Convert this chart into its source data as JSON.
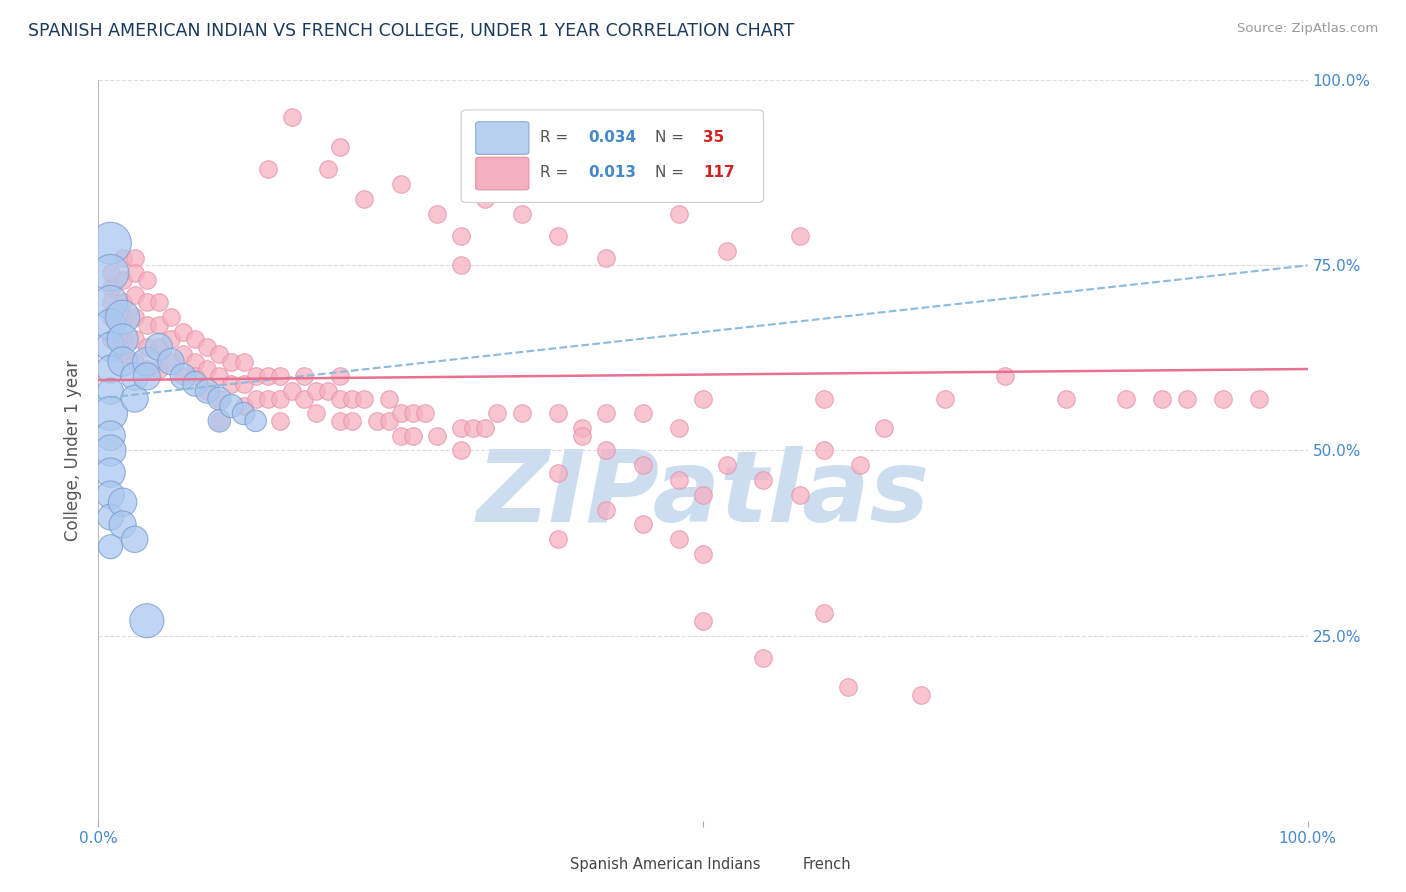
{
  "title": "SPANISH AMERICAN INDIAN VS FRENCH COLLEGE, UNDER 1 YEAR CORRELATION CHART",
  "source_text": "Source: ZipAtlas.com",
  "ylabel": "College, Under 1 year",
  "title_color": "#1a3a5c",
  "source_color": "#999999",
  "watermark": "ZIPatlas",
  "watermark_color": "#ccddf0",
  "xlim": [
    0.0,
    1.0
  ],
  "ylim": [
    0.0,
    1.0
  ],
  "blue_scatter": [
    [
      0.01,
      0.78
    ],
    [
      0.01,
      0.74
    ],
    [
      0.01,
      0.7
    ],
    [
      0.01,
      0.67
    ],
    [
      0.01,
      0.64
    ],
    [
      0.01,
      0.61
    ],
    [
      0.01,
      0.58
    ],
    [
      0.01,
      0.55
    ],
    [
      0.01,
      0.52
    ],
    [
      0.01,
      0.5
    ],
    [
      0.01,
      0.47
    ],
    [
      0.01,
      0.44
    ],
    [
      0.01,
      0.41
    ],
    [
      0.01,
      0.37
    ],
    [
      0.02,
      0.68
    ],
    [
      0.02,
      0.65
    ],
    [
      0.02,
      0.62
    ],
    [
      0.03,
      0.6
    ],
    [
      0.03,
      0.57
    ],
    [
      0.04,
      0.62
    ],
    [
      0.04,
      0.6
    ],
    [
      0.05,
      0.64
    ],
    [
      0.06,
      0.62
    ],
    [
      0.07,
      0.6
    ],
    [
      0.08,
      0.59
    ],
    [
      0.09,
      0.58
    ],
    [
      0.1,
      0.57
    ],
    [
      0.1,
      0.54
    ],
    [
      0.11,
      0.56
    ],
    [
      0.12,
      0.55
    ],
    [
      0.13,
      0.54
    ],
    [
      0.02,
      0.43
    ],
    [
      0.02,
      0.4
    ],
    [
      0.03,
      0.38
    ],
    [
      0.04,
      0.27
    ]
  ],
  "blue_sizes": [
    900,
    700,
    600,
    500,
    450,
    400,
    350,
    600,
    450,
    500,
    450,
    400,
    350,
    300,
    600,
    500,
    450,
    400,
    380,
    420,
    380,
    380,
    360,
    340,
    320,
    300,
    280,
    260,
    280,
    260,
    240,
    420,
    380,
    360,
    600
  ],
  "pink_scatter": [
    [
      0.01,
      0.74
    ],
    [
      0.01,
      0.72
    ],
    [
      0.01,
      0.7
    ],
    [
      0.01,
      0.68
    ],
    [
      0.01,
      0.65
    ],
    [
      0.02,
      0.76
    ],
    [
      0.02,
      0.73
    ],
    [
      0.02,
      0.7
    ],
    [
      0.02,
      0.68
    ],
    [
      0.02,
      0.65
    ],
    [
      0.02,
      0.63
    ],
    [
      0.03,
      0.76
    ],
    [
      0.03,
      0.74
    ],
    [
      0.03,
      0.71
    ],
    [
      0.03,
      0.68
    ],
    [
      0.03,
      0.65
    ],
    [
      0.03,
      0.62
    ],
    [
      0.04,
      0.73
    ],
    [
      0.04,
      0.7
    ],
    [
      0.04,
      0.67
    ],
    [
      0.04,
      0.64
    ],
    [
      0.04,
      0.61
    ],
    [
      0.05,
      0.7
    ],
    [
      0.05,
      0.67
    ],
    [
      0.05,
      0.64
    ],
    [
      0.05,
      0.61
    ],
    [
      0.06,
      0.68
    ],
    [
      0.06,
      0.65
    ],
    [
      0.06,
      0.62
    ],
    [
      0.07,
      0.66
    ],
    [
      0.07,
      0.63
    ],
    [
      0.07,
      0.6
    ],
    [
      0.08,
      0.65
    ],
    [
      0.08,
      0.62
    ],
    [
      0.08,
      0.6
    ],
    [
      0.09,
      0.64
    ],
    [
      0.09,
      0.61
    ],
    [
      0.09,
      0.58
    ],
    [
      0.1,
      0.63
    ],
    [
      0.1,
      0.6
    ],
    [
      0.1,
      0.57
    ],
    [
      0.1,
      0.54
    ],
    [
      0.11,
      0.62
    ],
    [
      0.11,
      0.59
    ],
    [
      0.12,
      0.62
    ],
    [
      0.12,
      0.59
    ],
    [
      0.12,
      0.56
    ],
    [
      0.13,
      0.6
    ],
    [
      0.13,
      0.57
    ],
    [
      0.14,
      0.6
    ],
    [
      0.14,
      0.57
    ],
    [
      0.15,
      0.6
    ],
    [
      0.15,
      0.57
    ],
    [
      0.15,
      0.54
    ],
    [
      0.16,
      0.58
    ],
    [
      0.17,
      0.6
    ],
    [
      0.17,
      0.57
    ],
    [
      0.18,
      0.58
    ],
    [
      0.18,
      0.55
    ],
    [
      0.19,
      0.58
    ],
    [
      0.2,
      0.6
    ],
    [
      0.2,
      0.57
    ],
    [
      0.2,
      0.54
    ],
    [
      0.21,
      0.57
    ],
    [
      0.21,
      0.54
    ],
    [
      0.22,
      0.57
    ],
    [
      0.23,
      0.54
    ],
    [
      0.24,
      0.57
    ],
    [
      0.24,
      0.54
    ],
    [
      0.25,
      0.55
    ],
    [
      0.25,
      0.52
    ],
    [
      0.26,
      0.55
    ],
    [
      0.26,
      0.52
    ],
    [
      0.27,
      0.55
    ],
    [
      0.28,
      0.52
    ],
    [
      0.3,
      0.53
    ],
    [
      0.3,
      0.5
    ],
    [
      0.31,
      0.53
    ],
    [
      0.32,
      0.53
    ],
    [
      0.33,
      0.55
    ],
    [
      0.35,
      0.55
    ],
    [
      0.38,
      0.55
    ],
    [
      0.4,
      0.53
    ],
    [
      0.42,
      0.55
    ],
    [
      0.45,
      0.55
    ],
    [
      0.48,
      0.53
    ],
    [
      0.5,
      0.57
    ],
    [
      0.14,
      0.88
    ],
    [
      0.16,
      0.95
    ],
    [
      0.19,
      0.88
    ],
    [
      0.22,
      0.84
    ],
    [
      0.2,
      0.91
    ],
    [
      0.25,
      0.86
    ],
    [
      0.28,
      0.82
    ],
    [
      0.3,
      0.79
    ],
    [
      0.32,
      0.84
    ],
    [
      0.35,
      0.82
    ],
    [
      0.3,
      0.75
    ],
    [
      0.38,
      0.79
    ],
    [
      0.42,
      0.76
    ],
    [
      0.48,
      0.82
    ],
    [
      0.52,
      0.77
    ],
    [
      0.58,
      0.79
    ],
    [
      0.6,
      0.57
    ],
    [
      0.65,
      0.53
    ],
    [
      0.7,
      0.57
    ],
    [
      0.75,
      0.6
    ],
    [
      0.8,
      0.57
    ],
    [
      0.85,
      0.57
    ],
    [
      0.88,
      0.57
    ],
    [
      0.9,
      0.57
    ],
    [
      0.93,
      0.57
    ],
    [
      0.96,
      0.57
    ],
    [
      0.38,
      0.47
    ],
    [
      0.4,
      0.52
    ],
    [
      0.42,
      0.5
    ],
    [
      0.45,
      0.48
    ],
    [
      0.48,
      0.46
    ],
    [
      0.5,
      0.44
    ],
    [
      0.52,
      0.48
    ],
    [
      0.55,
      0.46
    ],
    [
      0.58,
      0.44
    ],
    [
      0.6,
      0.5
    ],
    [
      0.63,
      0.48
    ],
    [
      0.38,
      0.38
    ],
    [
      0.42,
      0.42
    ],
    [
      0.45,
      0.4
    ],
    [
      0.48,
      0.38
    ],
    [
      0.5,
      0.36
    ],
    [
      0.5,
      0.27
    ],
    [
      0.55,
      0.22
    ],
    [
      0.6,
      0.28
    ],
    [
      0.62,
      0.18
    ],
    [
      0.68,
      0.17
    ]
  ],
  "blue_line_x": [
    0.0,
    1.0
  ],
  "blue_line_y": [
    0.57,
    0.75
  ],
  "pink_line_x": [
    0.0,
    1.0
  ],
  "pink_line_y": [
    0.595,
    0.61
  ],
  "blue_line_color": "#88bbdd",
  "pink_line_color": "#e87090",
  "grid_color": "#cccccc",
  "grid_color2": "#dddddd",
  "background_color": "#ffffff",
  "legend_blue_face": "#b8d0f0",
  "legend_blue_edge": "#88aadd",
  "legend_pink_face": "#f5b0c0",
  "legend_pink_edge": "#e890a8",
  "scatter_blue_face": "#aac8f0",
  "scatter_blue_edge": "#7799cc",
  "scatter_pink_face": "#f5b0c0",
  "scatter_pink_edge": "#e890a8",
  "R_color": "#4488cc",
  "N_color": "#cc2222",
  "axis_label_color": "#4488cc",
  "ylabel_color": "#555555"
}
